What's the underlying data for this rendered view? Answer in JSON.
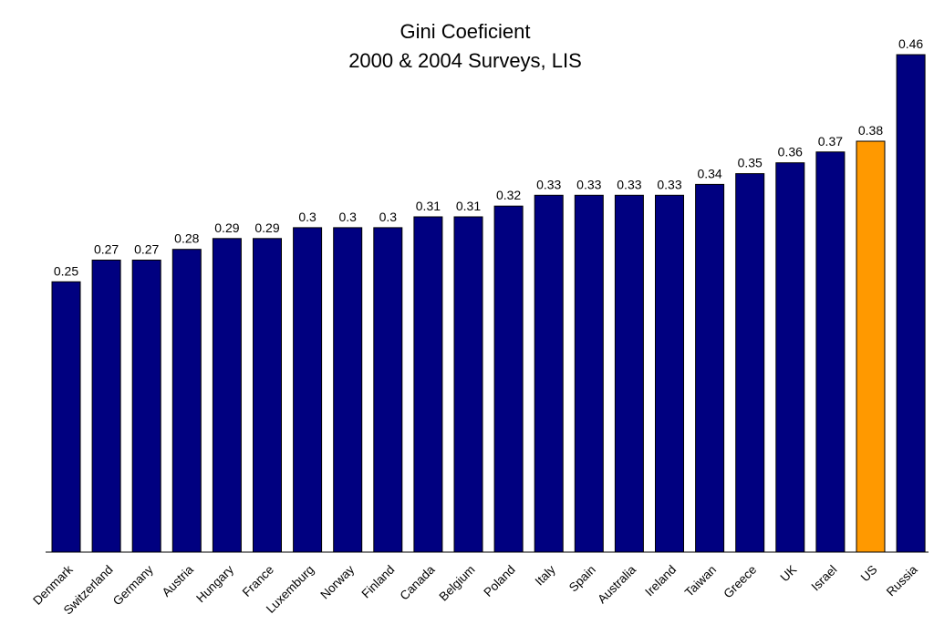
{
  "chart_data": {
    "type": "bar",
    "title": "Gini Coeficient",
    "subtitle": "2000 & 2004 Surveys, LIS",
    "xlabel": "",
    "ylabel": "",
    "ylim": [
      0,
      0.46
    ],
    "grid": false,
    "legend": "none",
    "categories": [
      "Denmark",
      "Switzerland",
      "Germany",
      "Austria",
      "Hungary",
      "France",
      "Luxemburg",
      "Norway",
      "Finland",
      "Canada",
      "Belgium",
      "Poland",
      "Italy",
      "Spain",
      "Australia",
      "Ireland",
      "Taiwan",
      "Greece",
      "UK",
      "Israel",
      "US",
      "Russia"
    ],
    "values": [
      0.25,
      0.27,
      0.27,
      0.28,
      0.29,
      0.29,
      0.3,
      0.3,
      0.3,
      0.31,
      0.31,
      0.32,
      0.33,
      0.33,
      0.33,
      0.33,
      0.34,
      0.35,
      0.36,
      0.37,
      0.38,
      0.46
    ],
    "value_labels": [
      "0.25",
      "0.27",
      "0.27",
      "0.28",
      "0.29",
      "0.29",
      "0.3",
      "0.3",
      "0.3",
      "0.31",
      "0.31",
      "0.32",
      "0.33",
      "0.33",
      "0.33",
      "0.33",
      "0.34",
      "0.35",
      "0.36",
      "0.37",
      "0.38",
      "0.46"
    ],
    "highlight_category": "US",
    "colors": {
      "bar": "#000080",
      "highlight": "#FF9900",
      "axis": "#000000"
    }
  }
}
